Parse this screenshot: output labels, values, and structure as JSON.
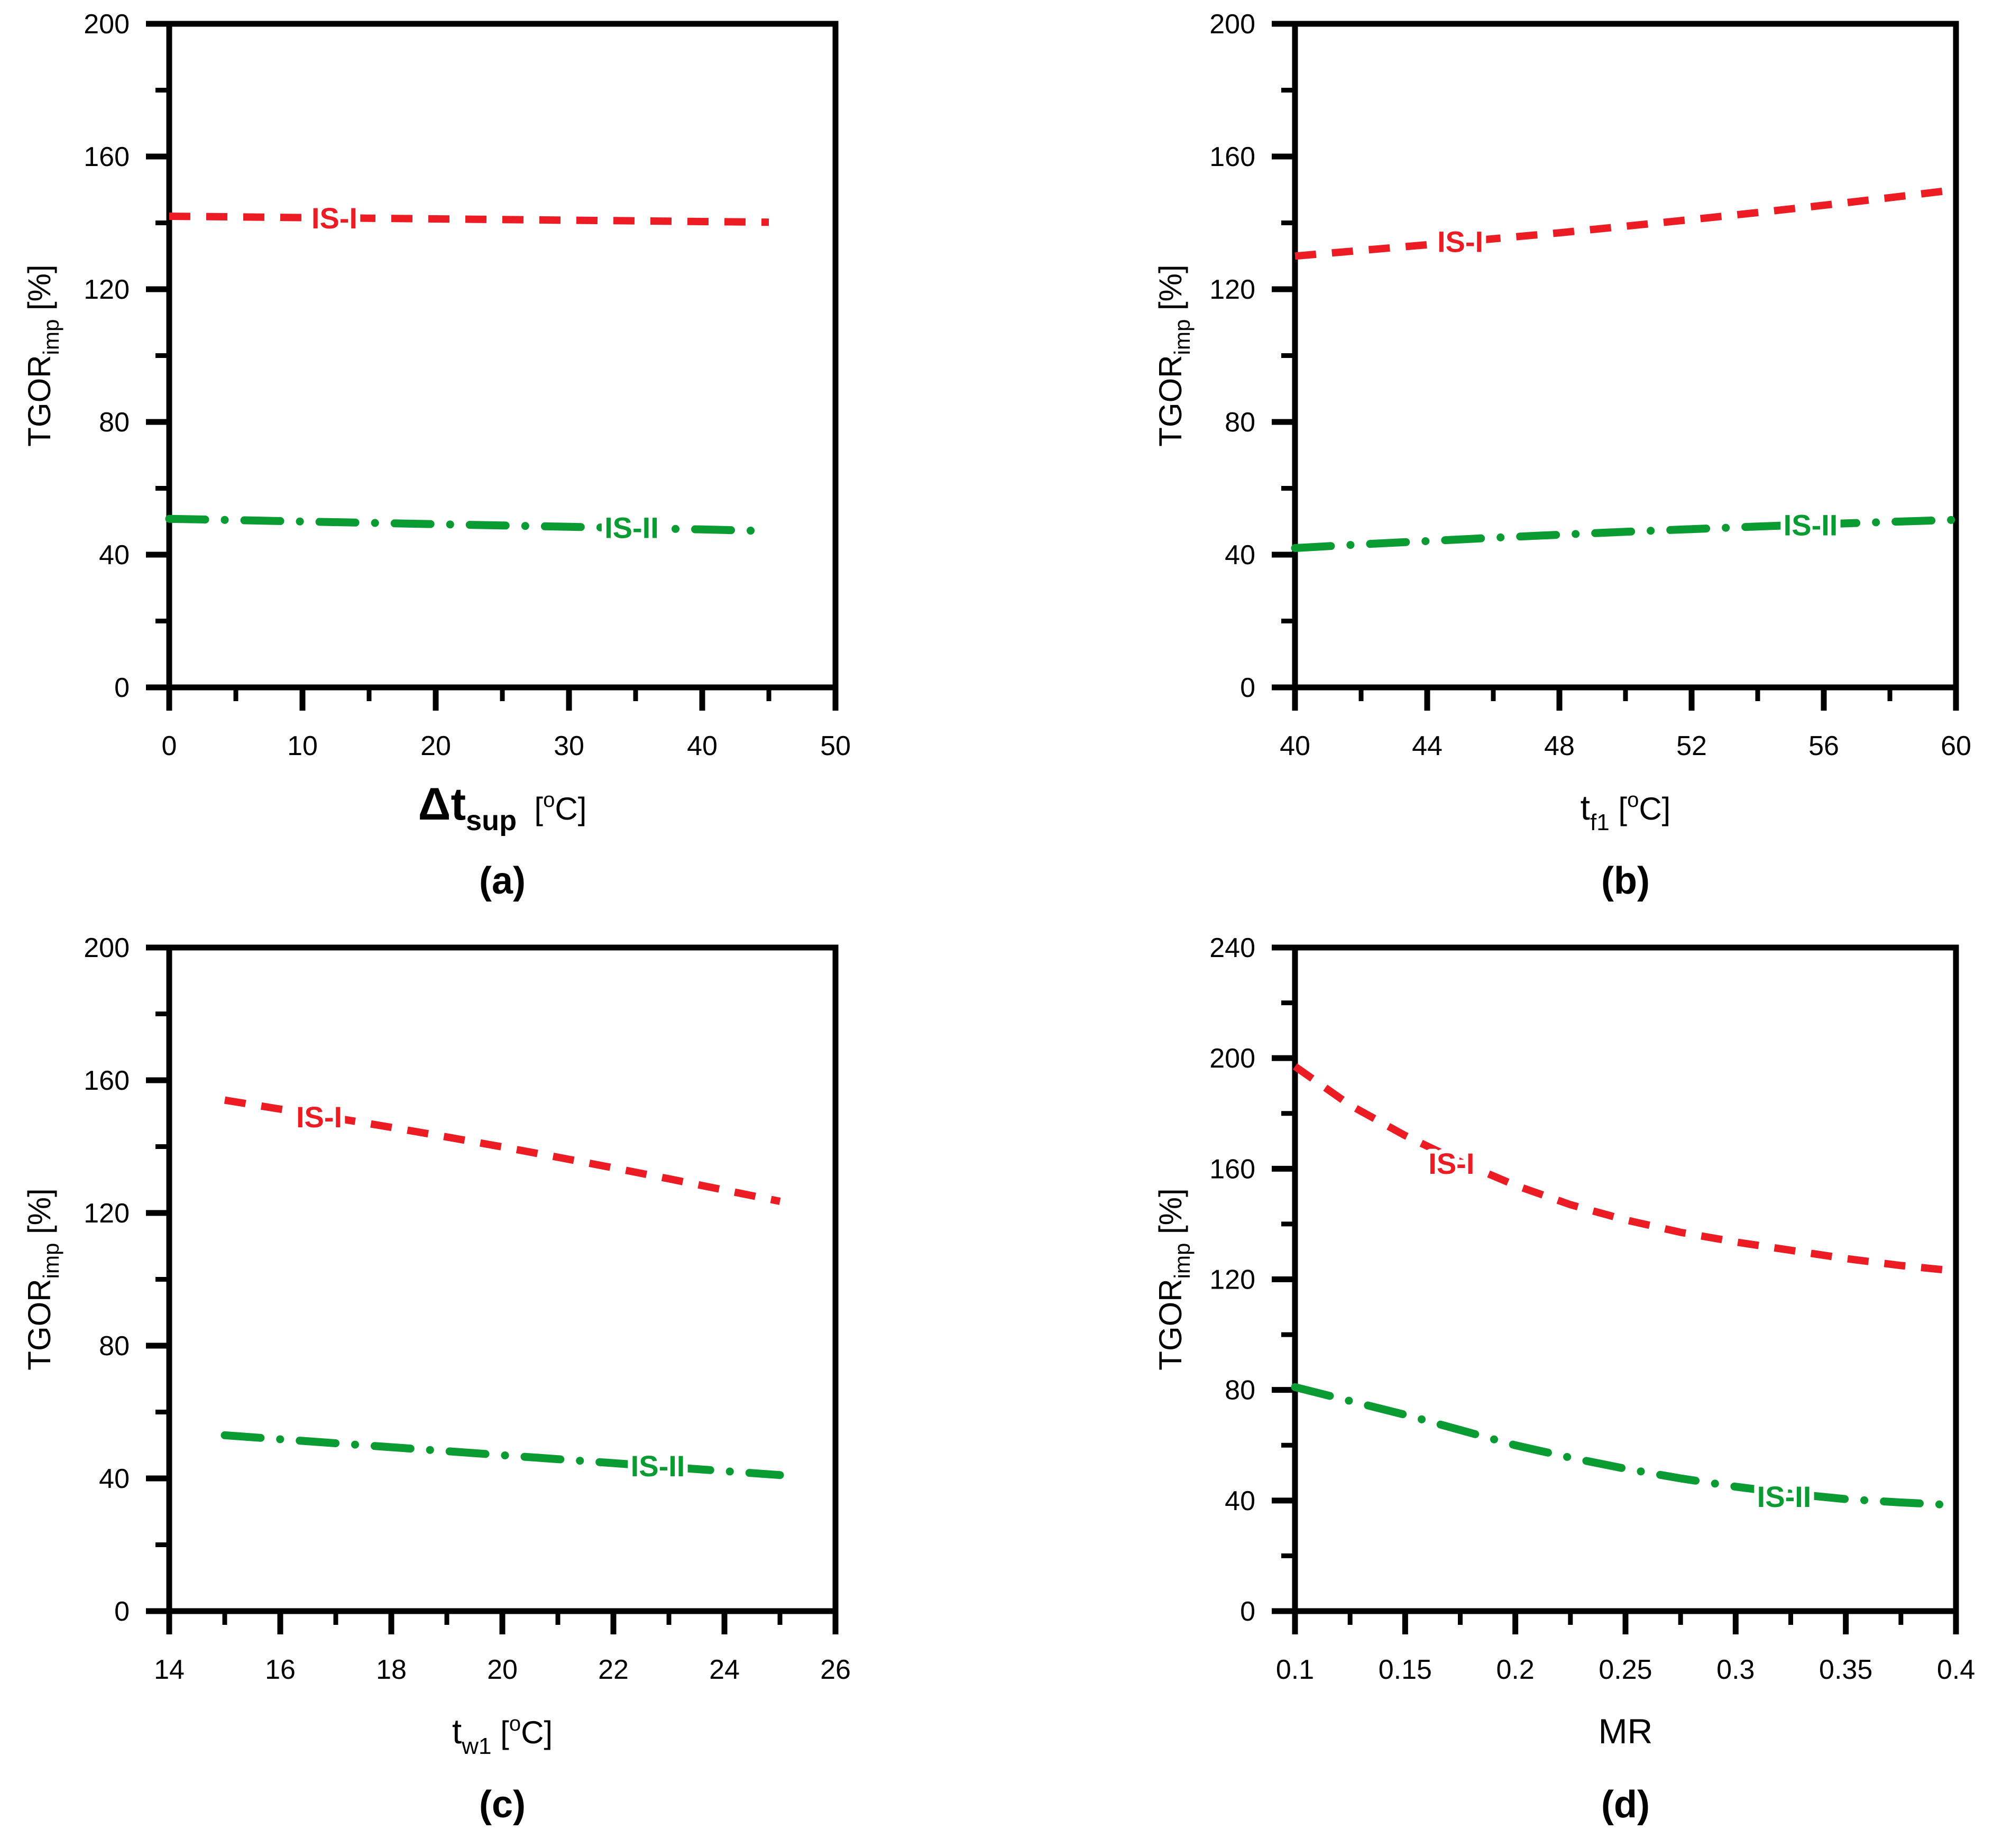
{
  "figure": {
    "kind": "four-panel line figure",
    "series_names": [
      "IS-I",
      "IS-II"
    ]
  },
  "colors": {
    "is1": "#ec1c24",
    "is2": "#0a9b32",
    "axis": "#000000",
    "background": "#ffffff",
    "label_halo": "#ffffff"
  },
  "chart_data": [
    {
      "id": "a",
      "type": "line",
      "panel_label": "(a)",
      "xlabel": {
        "main": "Δt",
        "bold": true,
        "sub": "sup",
        "unit_open": "  [",
        "unit_sup": "o",
        "unit_close": "C]"
      },
      "ylabel": {
        "main": "TGOR",
        "sub": "imp",
        "unit": " [%]"
      },
      "xlim": [
        0,
        50
      ],
      "ylim": [
        0,
        200
      ],
      "x_major_ticks": [
        "0",
        "10",
        "20",
        "30",
        "40",
        "50"
      ],
      "x_minor_step": 5,
      "y_major_ticks": [
        "0",
        "40",
        "80",
        "120",
        "160",
        "200"
      ],
      "y_minor_step": 20,
      "grid": false,
      "legend_position": "inline-on-line",
      "series": [
        {
          "name": "IS-I",
          "color": "is1",
          "style": "dashed",
          "x": [
            0,
            5,
            10,
            15,
            20,
            25,
            30,
            35,
            40,
            45
          ],
          "y": [
            142,
            141.8,
            141.6,
            141.4,
            141.2,
            141,
            140.8,
            140.6,
            140.4,
            140.2
          ],
          "label_at": [
            12.4,
            141.5
          ]
        },
        {
          "name": "IS-II",
          "color": "is2",
          "style": "dash-dot",
          "x": [
            0,
            5,
            10,
            15,
            20,
            25,
            30,
            35,
            40,
            45
          ],
          "y": [
            50.8,
            50.4,
            50,
            49.6,
            49.2,
            48.8,
            48.4,
            48,
            47.6,
            47.1
          ],
          "label_at": [
            34.7,
            48.2
          ]
        }
      ]
    },
    {
      "id": "b",
      "type": "line",
      "panel_label": "(b)",
      "xlabel": {
        "main": "t",
        "bold": false,
        "sub": "f1",
        "unit_open": " [",
        "unit_sup": "o",
        "unit_close": "C]"
      },
      "ylabel": {
        "main": "TGOR",
        "sub": "imp",
        "unit": " [%]"
      },
      "xlim": [
        40,
        60
      ],
      "ylim": [
        0,
        200
      ],
      "x_major_ticks": [
        "40",
        "44",
        "48",
        "52",
        "56",
        "60"
      ],
      "x_minor_step": 2,
      "y_major_ticks": [
        "0",
        "40",
        "80",
        "120",
        "160",
        "200"
      ],
      "y_minor_step": 20,
      "grid": false,
      "legend_position": "inline-on-line",
      "series": [
        {
          "name": "IS-I",
          "color": "is1",
          "style": "dashed",
          "x": [
            40,
            42,
            44,
            46,
            48,
            50,
            52,
            54,
            56,
            58,
            60
          ],
          "y": [
            130,
            131.7,
            133.4,
            135.2,
            137,
            139,
            141,
            143.1,
            145.3,
            147.6,
            150
          ],
          "label_at": [
            45,
            134.4
          ]
        },
        {
          "name": "IS-II",
          "color": "is2",
          "style": "dash-dot",
          "x": [
            40,
            42,
            44,
            46,
            48,
            50,
            52,
            54,
            56,
            58,
            60
          ],
          "y": [
            42,
            43.1,
            44.1,
            45.1,
            46,
            46.9,
            47.7,
            48.5,
            49.2,
            49.9,
            50.5
          ],
          "label_at": [
            55.6,
            49
          ]
        }
      ]
    },
    {
      "id": "c",
      "type": "line",
      "panel_label": "(c)",
      "xlabel": {
        "main": "t",
        "bold": false,
        "sub": "w1",
        "unit_open": " [",
        "unit_sup": "o",
        "unit_close": "C]"
      },
      "ylabel": {
        "main": "TGOR",
        "sub": "imp",
        "unit": " [%]"
      },
      "xlim": [
        14,
        26
      ],
      "ylim": [
        0,
        200
      ],
      "x_major_ticks": [
        "14",
        "16",
        "18",
        "20",
        "22",
        "24",
        "26"
      ],
      "x_minor_step": 1,
      "y_major_ticks": [
        "0",
        "40",
        "80",
        "120",
        "160",
        "200"
      ],
      "y_minor_step": 20,
      "grid": false,
      "legend_position": "inline-on-line",
      "series": [
        {
          "name": "IS-I",
          "color": "is1",
          "style": "dashed",
          "x": [
            15,
            16,
            17,
            18,
            19,
            20,
            21,
            22,
            23,
            24,
            25
          ],
          "y": [
            154,
            151.3,
            148.6,
            145.8,
            142.9,
            139.9,
            136.8,
            133.6,
            130.3,
            126.9,
            123.5
          ],
          "label_at": [
            16.7,
            149
          ]
        },
        {
          "name": "IS-II",
          "color": "is2",
          "style": "dash-dot",
          "x": [
            15,
            16,
            17,
            18,
            19,
            20,
            21,
            22,
            23,
            24,
            25
          ],
          "y": [
            53,
            51.8,
            50.6,
            49.4,
            48.2,
            47,
            45.8,
            44.6,
            43.4,
            42.2,
            41
          ],
          "label_at": [
            22.8,
            43.8
          ]
        }
      ]
    },
    {
      "id": "d",
      "type": "line",
      "panel_label": "(d)",
      "xlabel": {
        "main": "MR",
        "bold": false,
        "sub": "",
        "unit_open": "",
        "unit_sup": "",
        "unit_close": ""
      },
      "ylabel": {
        "main": "TGOR",
        "sub": "imp",
        "unit": " [%]"
      },
      "xlim": [
        0.1,
        0.4
      ],
      "ylim": [
        0,
        240
      ],
      "x_major_ticks": [
        "0.1",
        "0.15",
        "0.2",
        "0.25",
        "0.3",
        "0.35",
        "0.4"
      ],
      "x_minor_step": 0.025,
      "y_major_ticks": [
        "0",
        "40",
        "80",
        "120",
        "160",
        "200",
        "240"
      ],
      "y_minor_step": 20,
      "grid": false,
      "legend_position": "inline-on-line",
      "series": [
        {
          "name": "IS-I",
          "color": "is1",
          "style": "dashed",
          "x": [
            0.1,
            0.125,
            0.15,
            0.175,
            0.2,
            0.225,
            0.25,
            0.275,
            0.3,
            0.325,
            0.35,
            0.375,
            0.4
          ],
          "y": [
            197,
            183,
            172,
            162.5,
            154,
            147,
            141.5,
            137,
            133.5,
            130.5,
            127.5,
            125,
            123
          ],
          "label_at": [
            0.171,
            162
          ]
        },
        {
          "name": "IS-II",
          "color": "is2",
          "style": "dash-dot",
          "x": [
            0.1,
            0.125,
            0.15,
            0.175,
            0.2,
            0.225,
            0.25,
            0.275,
            0.3,
            0.325,
            0.35,
            0.375,
            0.4
          ],
          "y": [
            81,
            76,
            71,
            65.5,
            60,
            55.5,
            51.5,
            48,
            45,
            42.5,
            40.5,
            39.3,
            38.3
          ],
          "label_at": [
            0.322,
            41.5
          ]
        }
      ]
    }
  ]
}
